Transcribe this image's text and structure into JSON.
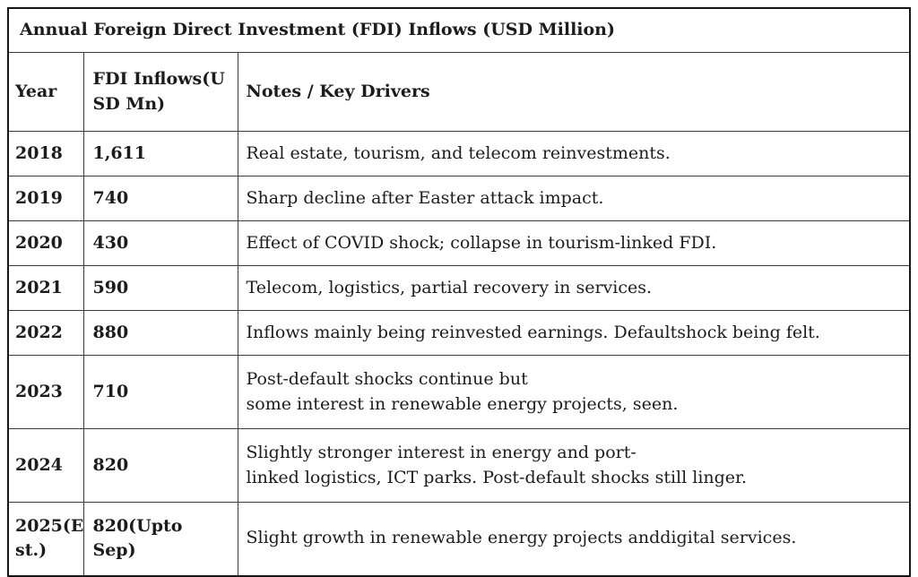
{
  "table": {
    "title": "Annual Foreign Direct Investment (FDI) Inflows (USD Million)",
    "headers": {
      "year": "Year",
      "fdi": "FDI Inflows(U\nSD Mn)",
      "notes": "Notes / Key Drivers"
    },
    "rows": [
      {
        "year": "2018",
        "fdi": "1,611",
        "notes": "Real estate, tourism, and telecom reinvestments."
      },
      {
        "year": "2019",
        "fdi": "740",
        "notes": "Sharp decline after Easter attack impact."
      },
      {
        "year": "2020",
        "fdi": "430",
        "notes": "Effect of COVID shock; collapse in tourism-linked FDI."
      },
      {
        "year": "2021",
        "fdi": "590",
        "notes": "Telecom, logistics, partial recovery in services."
      },
      {
        "year": "2022",
        "fdi": "880",
        "notes": "Inflows mainly being reinvested earnings. Defaultshock being felt."
      },
      {
        "year": "2023",
        "fdi": "710",
        "notes": "Post-default shocks continue but\nsome interest in renewable energy projects, seen."
      },
      {
        "year": "2024",
        "fdi": "820",
        "notes": "Slightly stronger interest in energy and port-\nlinked logistics, ICT parks. Post-default shocks still linger."
      },
      {
        "year": "2025(E\nst.)",
        "fdi": "820(Upto Sep)",
        "notes": "Slight growth in renewable energy projects anddigital services."
      }
    ],
    "colors": {
      "outer_border": "#161616",
      "inner_border": "#3a3a3a",
      "text": "#1c1c1c",
      "background": "#ffffff"
    }
  }
}
